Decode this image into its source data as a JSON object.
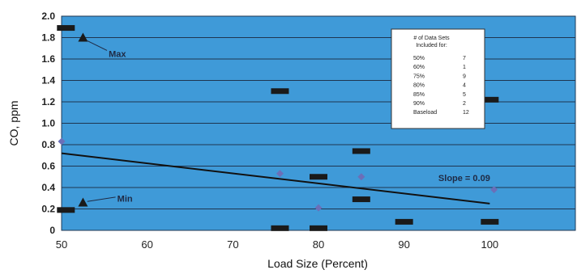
{
  "chart_data": {
    "type": "scatter",
    "xlabel": "Load Size (Percent)",
    "ylabel": "CO, ppm",
    "xlim": [
      50,
      110
    ],
    "ylim": [
      0,
      2.0
    ],
    "x_ticks": [
      50,
      60,
      70,
      80,
      90,
      100
    ],
    "y_ticks": [
      0,
      0.2,
      0.4,
      0.6,
      0.8,
      1.0,
      1.2,
      1.4,
      1.6,
      1.8,
      2.0
    ],
    "y_tick_labels": [
      "0",
      "0.2",
      "0.4",
      "0.6",
      "0.8",
      "1.0",
      "1.2",
      "1.4",
      "1.6",
      "1.8",
      "2.0"
    ],
    "grid": "horizontal",
    "background": "#3f9ad8",
    "series": [
      {
        "marker": "bar",
        "color": "#1a1a1a",
        "points": [
          {
            "x": 50.5,
            "y": 1.89
          },
          {
            "x": 50.5,
            "y": 0.19
          },
          {
            "x": 75.5,
            "y": 1.3
          },
          {
            "x": 75.5,
            "y": 0.02
          },
          {
            "x": 80,
            "y": 0.5
          },
          {
            "x": 80,
            "y": 0.02
          },
          {
            "x": 85,
            "y": 0.74
          },
          {
            "x": 85,
            "y": 0.29
          },
          {
            "x": 90,
            "y": 0.08
          },
          {
            "x": 100,
            "y": 1.22
          },
          {
            "x": 100,
            "y": 0.08
          }
        ]
      },
      {
        "marker": "diamond",
        "color": "#6b6fb8",
        "points": [
          {
            "x": 50,
            "y": 0.83
          },
          {
            "x": 75.5,
            "y": 0.53
          },
          {
            "x": 85,
            "y": 0.5
          },
          {
            "x": 80,
            "y": 0.21
          },
          {
            "x": 100.5,
            "y": 0.38
          }
        ]
      },
      {
        "marker": "triangle",
        "color": "#1a1a1a",
        "points": [
          {
            "x": 52.5,
            "y": 1.8
          },
          {
            "x": 52.5,
            "y": 0.26
          }
        ]
      }
    ],
    "trendline": {
      "x": [
        50,
        100
      ],
      "y": [
        0.72,
        0.25
      ],
      "color": "#111111"
    },
    "annotations": [
      {
        "text": "Max",
        "x": 55.5,
        "y": 1.65
      },
      {
        "text": "Min",
        "x": 56.5,
        "y": 0.3
      },
      {
        "text": "Slope = 0.09",
        "x": 94,
        "y": 0.49
      }
    ],
    "legend": {
      "title_lines": [
        "# of Data Sets",
        "Included for:"
      ],
      "rows": [
        {
          "label": "50%",
          "value": "7"
        },
        {
          "label": "60%",
          "value": "1"
        },
        {
          "label": "75%",
          "value": "9"
        },
        {
          "label": "80%",
          "value": "4"
        },
        {
          "label": "85%",
          "value": "5"
        },
        {
          "label": "90%",
          "value": "2"
        },
        {
          "label": "Baseload",
          "value": "12"
        }
      ],
      "placement": "top-right"
    }
  }
}
